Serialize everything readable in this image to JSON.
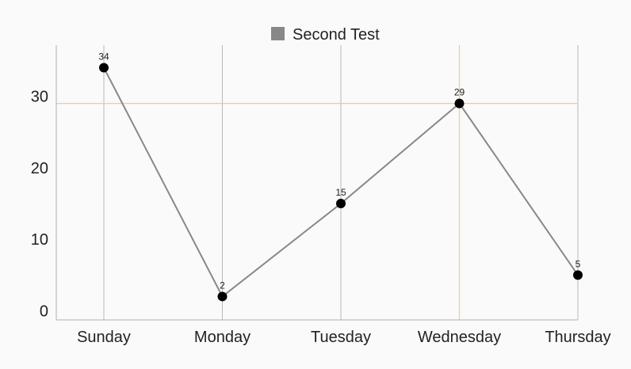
{
  "chart_data": {
    "type": "line",
    "title": "",
    "xlabel": "",
    "ylabel": "",
    "categories": [
      "Sunday",
      "Monday",
      "Tuesday",
      "Wednesday",
      "Thursday"
    ],
    "series": [
      {
        "name": "Second Test",
        "values": [
          34,
          2,
          15,
          29,
          5
        ],
        "color": "#888888"
      }
    ],
    "ylim": [
      0,
      37
    ],
    "y_ticks": [
      "0",
      "10",
      "20",
      "30"
    ],
    "data_labels": [
      "34",
      "2",
      "15",
      "29",
      "5"
    ],
    "legend": {
      "position": "top-center"
    },
    "grid": {
      "vertical": true,
      "horizontal": false,
      "color": "#b8b8b8"
    },
    "highlight": {
      "category": "Wednesday",
      "value": 29,
      "color": "#f5c98a"
    },
    "marker_color": "#000000"
  }
}
